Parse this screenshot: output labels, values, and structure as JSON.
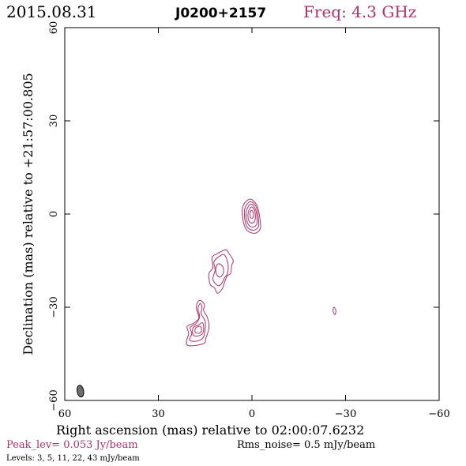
{
  "header": {
    "date": "2015.08.31",
    "source": "J0200+2157",
    "frequency": "Freq: 4.3 GHz"
  },
  "footer": {
    "peak": "Peak_lev=  0.053 Jy/beam",
    "rms": "Rms_noise=   0.5  mJy/beam",
    "levels": "Levels:   3,   5,  11,  22,  43 mJy/beam"
  },
  "colors": {
    "contour": "#b0306a",
    "axes": "#000000",
    "beam_fill": "#6e6e6e"
  },
  "chart_data": {
    "type": "contour",
    "xlabel": "Right ascension (mas) relative to 02:00:07.6232",
    "ylabel": "Declination (mas) relative to +21:57:00.805",
    "xlim": [
      60,
      -60
    ],
    "ylim": [
      -60,
      60
    ],
    "xticks": [
      60,
      30,
      0,
      -30,
      -60
    ],
    "yticks": [
      -60,
      -30,
      0,
      30,
      60
    ],
    "x_tick_labels": [
      "60",
      "30",
      "0",
      "−30",
      "−60"
    ],
    "y_tick_labels": [
      "−60",
      "−30",
      "0",
      "30",
      "60"
    ],
    "contour_levels_mJy": [
      3,
      5,
      11,
      22,
      43
    ],
    "peak_Jy_per_beam": 0.053,
    "rms_noise_mJy_per_beam": 0.5,
    "beam": {
      "x": 55,
      "y": -57,
      "major": 3.8,
      "minor": 2.1,
      "pa_deg": -10
    },
    "components": [
      {
        "name": "core",
        "contours": [
          {
            "level": 3,
            "points": [
              [
                0.6,
                4.8
              ],
              [
                -1.5,
                3.0
              ],
              [
                -2.4,
                -0.5
              ],
              [
                -2.7,
                -4.5
              ],
              [
                -0.9,
                -6.2
              ],
              [
                1.8,
                -5.0
              ],
              [
                3.0,
                -1.0
              ],
              [
                2.8,
                2.8
              ]
            ]
          },
          {
            "level": 5,
            "points": [
              [
                0.4,
                4.0
              ],
              [
                -1.3,
                2.4
              ],
              [
                -2.0,
                -0.8
              ],
              [
                -2.1,
                -4.0
              ],
              [
                -0.5,
                -5.2
              ],
              [
                1.5,
                -4.2
              ],
              [
                2.4,
                -0.8
              ],
              [
                2.1,
                2.3
              ]
            ]
          },
          {
            "level": 11,
            "points": [
              [
                0.3,
                3.2
              ],
              [
                -1.0,
                1.8
              ],
              [
                -1.6,
                -0.8
              ],
              [
                -1.5,
                -3.3
              ],
              [
                -0.2,
                -4.2
              ],
              [
                1.2,
                -3.3
              ],
              [
                1.9,
                -0.6
              ],
              [
                1.5,
                1.8
              ]
            ]
          },
          {
            "level": 22,
            "points": [
              [
                0.1,
                2.3
              ],
              [
                -0.8,
                1.2
              ],
              [
                -1.1,
                -0.8
              ],
              [
                -0.8,
                -2.4
              ],
              [
                0.2,
                -2.9
              ],
              [
                1.0,
                -2.1
              ],
              [
                1.3,
                -0.4
              ],
              [
                0.9,
                1.3
              ]
            ]
          },
          {
            "level": 43,
            "points": [
              [
                0.1,
                1.2
              ],
              [
                -0.4,
                0.4
              ],
              [
                -0.5,
                -0.6
              ],
              [
                -0.2,
                -1.3
              ],
              [
                0.4,
                -1.2
              ],
              [
                0.6,
                -0.3
              ],
              [
                0.5,
                0.7
              ]
            ]
          }
        ]
      },
      {
        "name": "jet-inner",
        "contours": [
          {
            "level": 3,
            "points": [
              [
                8.5,
                -11.5
              ],
              [
                11.2,
                -12.8
              ],
              [
                12.8,
                -14.0
              ],
              [
                12.5,
                -17.2
              ],
              [
                13.8,
                -19.2
              ],
              [
                13.4,
                -22.6
              ],
              [
                12.0,
                -23.8
              ],
              [
                11.0,
                -25.5
              ],
              [
                9.5,
                -24.0
              ],
              [
                8.8,
                -22.0
              ],
              [
                8.0,
                -20.0
              ],
              [
                6.8,
                -19.0
              ],
              [
                6.5,
                -16.5
              ],
              [
                6.0,
                -15.0
              ],
              [
                7.5,
                -12.5
              ]
            ]
          },
          {
            "level": 5,
            "points": [
              [
                9.0,
                -13.0
              ],
              [
                11.0,
                -14.0
              ],
              [
                12.2,
                -15.5
              ],
              [
                11.8,
                -18.0
              ],
              [
                12.5,
                -21.0
              ],
              [
                11.0,
                -23.0
              ],
              [
                9.8,
                -22.5
              ],
              [
                8.8,
                -20.5
              ],
              [
                8.0,
                -19.5
              ],
              [
                7.6,
                -17.0
              ],
              [
                8.0,
                -14.8
              ]
            ]
          },
          {
            "level": 11,
            "points": [
              [
                10.8,
                -16.0
              ],
              [
                11.6,
                -17.5
              ],
              [
                11.3,
                -19.5
              ],
              [
                10.2,
                -20.3
              ],
              [
                9.2,
                -19.0
              ],
              [
                9.3,
                -17.0
              ]
            ]
          }
        ]
      },
      {
        "name": "jet-outer",
        "contours": [
          {
            "level": 3,
            "points": [
              [
                16.5,
                -27.8
              ],
              [
                15.2,
                -29.2
              ],
              [
                15.5,
                -31.0
              ],
              [
                14.2,
                -33.5
              ],
              [
                13.8,
                -36.8
              ],
              [
                14.8,
                -40.0
              ],
              [
                15.2,
                -41.5
              ],
              [
                18.0,
                -42.3
              ],
              [
                20.5,
                -42.3
              ],
              [
                21.0,
                -41.0
              ],
              [
                20.3,
                -38.5
              ],
              [
                20.8,
                -36.2
              ],
              [
                18.8,
                -35.2
              ],
              [
                17.0,
                -33.5
              ],
              [
                17.8,
                -30.5
              ],
              [
                17.5,
                -28.5
              ]
            ]
          },
          {
            "level": 5,
            "points": [
              [
                16.6,
                -28.8
              ],
              [
                16.0,
                -30.0
              ],
              [
                16.3,
                -32.0
              ],
              [
                15.0,
                -34.5
              ],
              [
                15.0,
                -37.0
              ],
              [
                15.5,
                -39.5
              ],
              [
                16.5,
                -40.5
              ],
              [
                18.5,
                -41.0
              ],
              [
                20.0,
                -40.5
              ],
              [
                19.3,
                -38.5
              ],
              [
                19.8,
                -36.5
              ],
              [
                18.0,
                -35.3
              ],
              [
                16.8,
                -33.2
              ],
              [
                17.3,
                -30.5
              ]
            ]
          },
          {
            "level": 11,
            "points": [
              [
                15.8,
                -35.0
              ],
              [
                15.5,
                -37.5
              ],
              [
                16.2,
                -38.8
              ],
              [
                18.0,
                -39.3
              ],
              [
                19.0,
                -38.5
              ],
              [
                18.8,
                -36.5
              ],
              [
                17.3,
                -35.8
              ]
            ]
          },
          {
            "level": 22,
            "points": [
              [
                16.5,
                -36.2
              ],
              [
                16.2,
                -37.6
              ],
              [
                17.0,
                -38.4
              ],
              [
                18.2,
                -38.0
              ],
              [
                18.0,
                -36.6
              ]
            ]
          }
        ]
      },
      {
        "name": "isolated-blob",
        "contours": [
          {
            "level": 3,
            "points": [
              [
                -26.3,
                -30.0
              ],
              [
                -26.9,
                -31.0
              ],
              [
                -26.6,
                -32.4
              ],
              [
                -26.0,
                -31.2
              ]
            ]
          }
        ]
      }
    ]
  }
}
